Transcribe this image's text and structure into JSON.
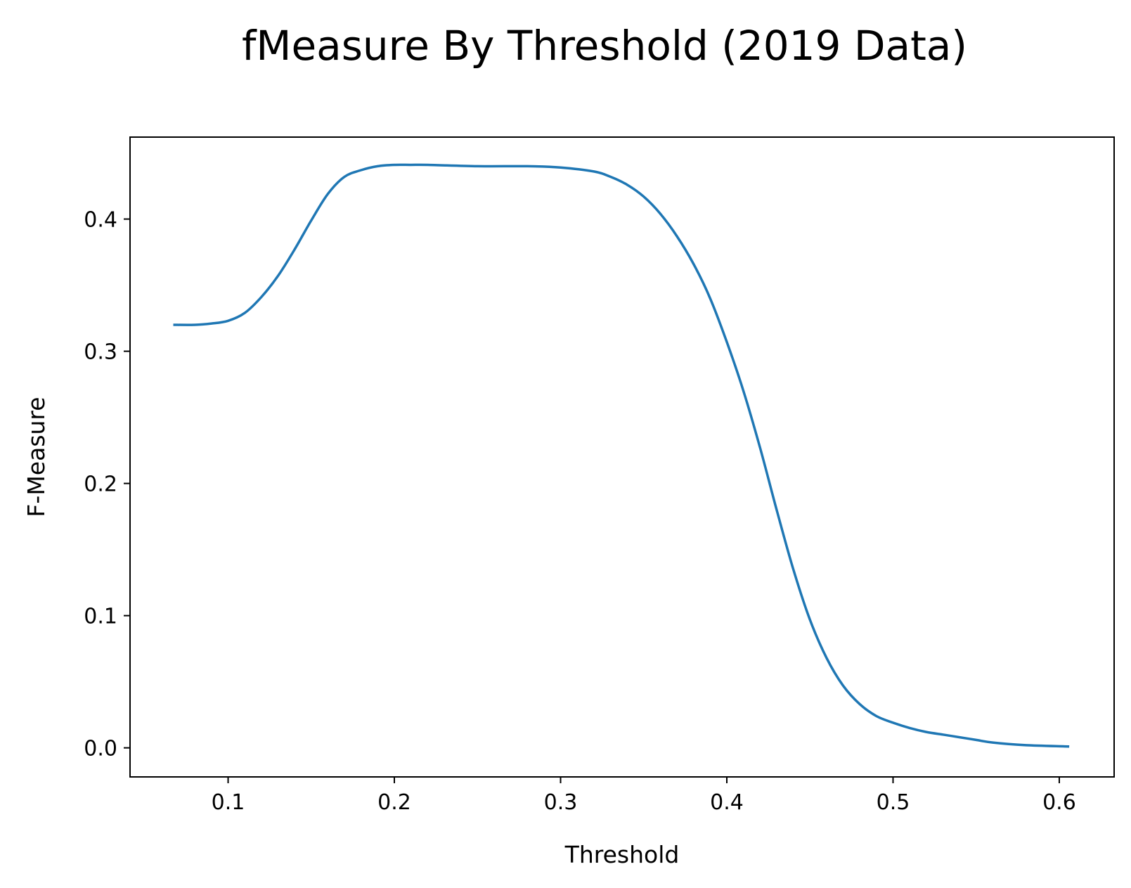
{
  "chart_data": {
    "type": "line",
    "title": "fMeasure By Threshold (2019 Data)",
    "xlabel": "Threshold",
    "ylabel": "F-Measure",
    "xlim": [
      0.041,
      0.633
    ],
    "ylim": [
      -0.022,
      0.462
    ],
    "xticks": [
      0.1,
      0.2,
      0.3,
      0.4,
      0.5,
      0.6
    ],
    "xtick_labels": [
      "0.1",
      "0.2",
      "0.3",
      "0.4",
      "0.5",
      "0.6"
    ],
    "yticks": [
      0.0,
      0.1,
      0.2,
      0.3,
      0.4
    ],
    "ytick_labels": [
      "0.0",
      "0.1",
      "0.2",
      "0.3",
      "0.4"
    ],
    "grid": false,
    "series": [
      {
        "color": "#1f77b4",
        "x": [
          0.067,
          0.08,
          0.09,
          0.1,
          0.11,
          0.12,
          0.13,
          0.14,
          0.15,
          0.16,
          0.17,
          0.18,
          0.19,
          0.2,
          0.21,
          0.22,
          0.25,
          0.28,
          0.3,
          0.32,
          0.33,
          0.34,
          0.35,
          0.36,
          0.37,
          0.38,
          0.39,
          0.4,
          0.41,
          0.42,
          0.43,
          0.44,
          0.45,
          0.46,
          0.47,
          0.48,
          0.49,
          0.5,
          0.51,
          0.52,
          0.53,
          0.54,
          0.55,
          0.56,
          0.58,
          0.606
        ],
        "y": [
          0.32,
          0.32,
          0.321,
          0.323,
          0.329,
          0.341,
          0.357,
          0.377,
          0.399,
          0.419,
          0.432,
          0.437,
          0.44,
          0.441,
          0.441,
          0.441,
          0.44,
          0.44,
          0.439,
          0.436,
          0.432,
          0.426,
          0.417,
          0.404,
          0.387,
          0.366,
          0.34,
          0.307,
          0.27,
          0.227,
          0.18,
          0.135,
          0.097,
          0.068,
          0.047,
          0.033,
          0.024,
          0.019,
          0.015,
          0.012,
          0.01,
          0.008,
          0.006,
          0.004,
          0.002,
          0.001
        ]
      }
    ]
  }
}
